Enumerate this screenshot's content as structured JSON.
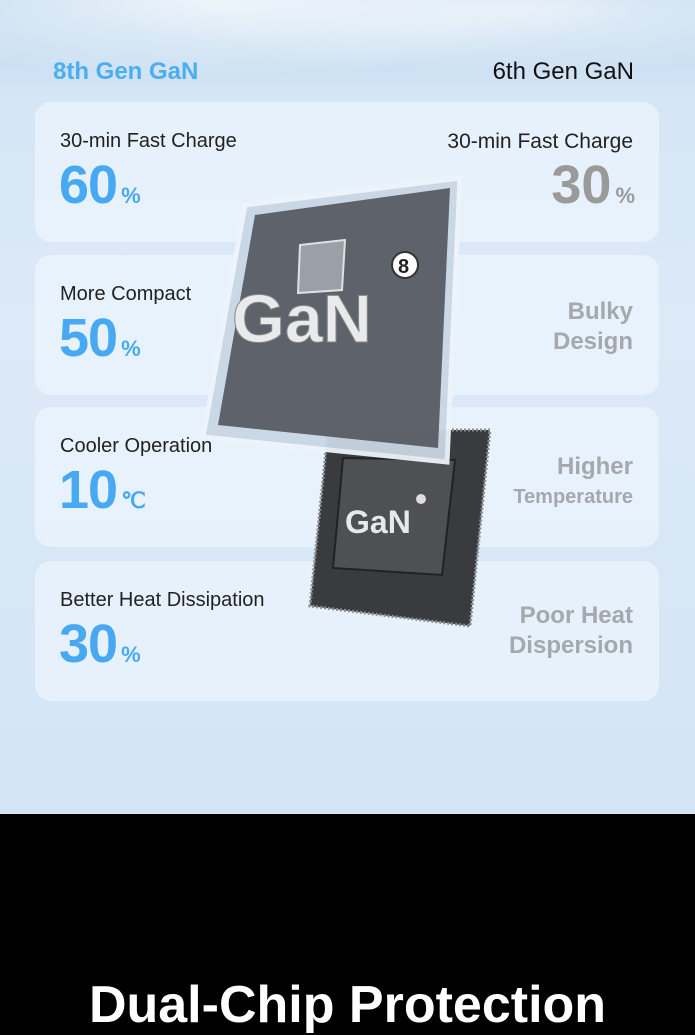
{
  "header": {
    "left": "8th Gen GaN",
    "right": "6th Gen GaN"
  },
  "rows": [
    {
      "label": "30-min Fast Charge",
      "value": "60",
      "unit": "%",
      "right_label": "30-min Fast Charge",
      "right_value": "30",
      "right_unit": "%"
    },
    {
      "label": "More Compact",
      "value": "50",
      "unit": "%",
      "right_line1": "Bulky",
      "right_line2": "Design"
    },
    {
      "label": "Cooler Operation",
      "value": "10",
      "unit": "℃",
      "right_line1": "Higher",
      "right_line2": "Temperature"
    },
    {
      "label": "Better Heat Dissipation",
      "value": "30",
      "unit": "%",
      "right_line1": "Poor Heat",
      "right_line2": "Dispersion"
    }
  ],
  "chips": {
    "front_label": "GaN",
    "front_badge": "8",
    "back_label": "GaN"
  },
  "footer": {
    "title": "Dual-Chip Protection"
  },
  "colors": {
    "accent": "#47a9f2",
    "muted": "#9a9a9a",
    "background": "#d5e6f6"
  }
}
